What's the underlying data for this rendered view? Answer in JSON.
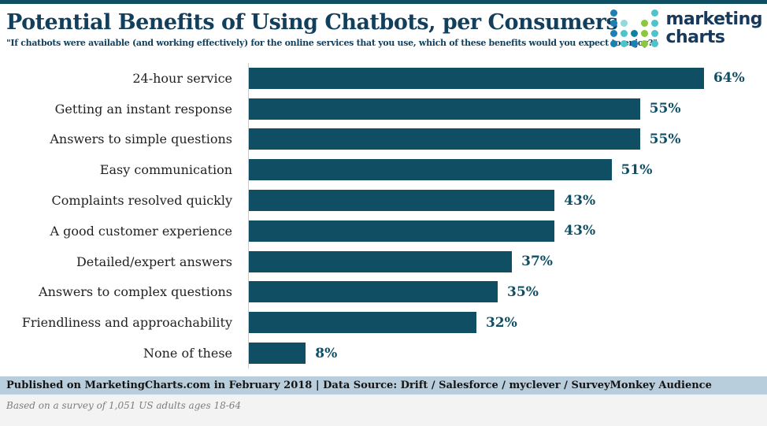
{
  "header": {
    "title": "Potential Benefits of Using Chatbots, per Consumers",
    "subtitle": "\"If chatbots were available (and working effectively) for the online services that you use, which of these benefits would you expect to enjoy?\"",
    "logo": {
      "line1": "marketing",
      "line2": "charts",
      "dot_grid": [
        [
          "b",
          "",
          "",
          "",
          "t"
        ],
        [
          "b",
          "lt",
          "",
          "g",
          "t"
        ],
        [
          "b",
          "t",
          "dt",
          "g",
          "t"
        ],
        [
          "b",
          "t",
          "b",
          "g",
          "t"
        ]
      ],
      "dot_palette": {
        "b": "#1d7fb2",
        "t": "#4cc4ca",
        "lt": "#93d9dc",
        "dt": "#0f819c",
        "g": "#8dc63f"
      }
    }
  },
  "chart_data": {
    "type": "bar",
    "orientation": "horizontal",
    "title": "Potential Benefits of Using Chatbots, per Consumers",
    "categories": [
      "24-hour service",
      "Getting an instant response",
      "Answers to simple questions",
      "Easy communication",
      "Complaints resolved quickly",
      "A good customer experience",
      "Detailed/expert answers",
      "Answers to complex questions",
      "Friendliness and approachability",
      "None of these"
    ],
    "values": [
      64,
      55,
      55,
      51,
      43,
      43,
      37,
      35,
      32,
      8
    ],
    "value_suffix": "%",
    "xlim": [
      0,
      66
    ],
    "grid": false,
    "legend": "none",
    "bar_color": "#104e64",
    "value_label_color": "#104e64"
  },
  "footer": {
    "published_line": "Published on MarketingCharts.com in February 2018 | Data Source: Drift / Salesforce / myclever / SurveyMonkey Audience",
    "note": "Based on a survey of 1,051 US adults ages 18-64"
  },
  "colors": {
    "accent": "#123f5b",
    "bar": "#104e64",
    "band_bg": "#b9cedd",
    "note_gray": "#7d7d7d",
    "note_bg": "#f3f3f3",
    "axis": "#cccccc",
    "label": "#222222",
    "logo_navy": "#16395c"
  }
}
